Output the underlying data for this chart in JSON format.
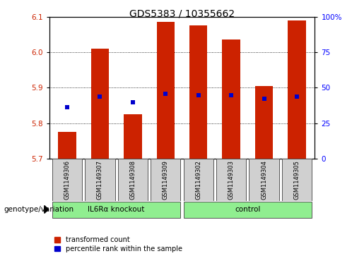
{
  "title": "GDS5383 / 10355662",
  "samples": [
    "GSM1149306",
    "GSM1149307",
    "GSM1149308",
    "GSM1149309",
    "GSM1149302",
    "GSM1149303",
    "GSM1149304",
    "GSM1149305"
  ],
  "bar_bottoms": [
    5.7,
    5.7,
    5.7,
    5.7,
    5.7,
    5.7,
    5.7,
    5.7
  ],
  "bar_tops": [
    5.775,
    6.01,
    5.825,
    6.085,
    6.075,
    6.035,
    5.905,
    6.09
  ],
  "percentile_values": [
    5.845,
    5.875,
    5.858,
    5.882,
    5.878,
    5.878,
    5.868,
    5.875
  ],
  "groups": [
    {
      "label": "IL6Rα knockout",
      "indices": [
        0,
        1,
        2,
        3
      ],
      "color": "#90ee90"
    },
    {
      "label": "control",
      "indices": [
        4,
        5,
        6,
        7
      ],
      "color": "#90ee90"
    }
  ],
  "ylim": [
    5.7,
    6.1
  ],
  "yticks": [
    5.7,
    5.8,
    5.9,
    6.0,
    6.1
  ],
  "right_yticks": [
    0,
    25,
    50,
    75,
    100
  ],
  "bar_color": "#cc2200",
  "percentile_color": "#0000cc",
  "title_fontsize": 10,
  "tick_fontsize": 7.5,
  "bar_width": 0.55,
  "genotype_label": "genotype/variation",
  "legend1": "transformed count",
  "legend2": "percentile rank within the sample"
}
